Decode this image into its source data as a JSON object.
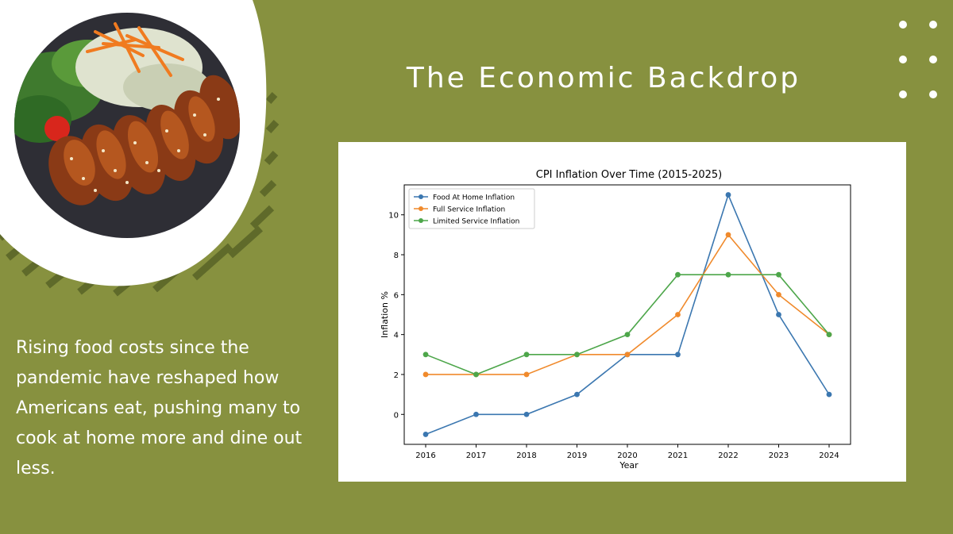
{
  "slide": {
    "title": "The Economic Backdrop",
    "body": "Rising food costs since the pandemic have reshaped how Americans eat, pushing many to cook at home more and dine out less.",
    "image": "grilled-chicken-salad-plate"
  },
  "colors": {
    "background": "#87913f",
    "stripe": "#5f6a2a",
    "text": "#ffffff"
  },
  "chart_data": {
    "type": "line",
    "title": "CPI Inflation Over Time (2015-2025)",
    "xlabel": "Year",
    "ylabel": "Inflation %",
    "x": [
      2016,
      2017,
      2018,
      2019,
      2020,
      2021,
      2022,
      2023,
      2024
    ],
    "ylim": [
      -1.5,
      11.5
    ],
    "yticks": [
      0,
      2,
      4,
      6,
      8,
      10
    ],
    "legend_position": "top-left",
    "grid": false,
    "series": [
      {
        "name": "Food At Home Inflation",
        "color": "#3b77b0",
        "values": [
          -1,
          0,
          0,
          1,
          3,
          3,
          11,
          5,
          1
        ]
      },
      {
        "name": "Full Service Inflation",
        "color": "#f08a2c",
        "values": [
          2,
          2,
          2,
          3,
          3,
          5,
          9,
          6,
          4
        ]
      },
      {
        "name": "Limited Service Inflation",
        "color": "#4da64a",
        "values": [
          3,
          2,
          3,
          3,
          4,
          7,
          7,
          7,
          4
        ]
      }
    ]
  }
}
